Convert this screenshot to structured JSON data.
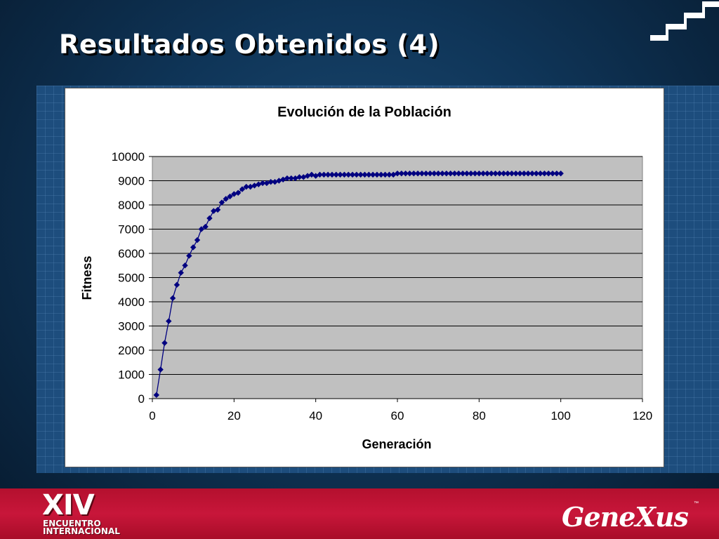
{
  "slide": {
    "title": "Resultados Obtenidos (4)",
    "colors": {
      "accent": "#c8163a",
      "background": "#0f3558"
    }
  },
  "footer": {
    "left_logo": {
      "big": "XIV",
      "line1": "ENCUENTRO",
      "line2": "INTERNACIONAL"
    },
    "right_logo": "GeneXus",
    "tm": "™"
  },
  "chart_data": {
    "type": "line",
    "title": "Evolución de la Población",
    "xlabel": "Generación",
    "ylabel": "Fitness",
    "xlim": [
      0,
      120
    ],
    "ylim": [
      0,
      10000
    ],
    "xticks": [
      0,
      20,
      40,
      60,
      80,
      100,
      120
    ],
    "yticks": [
      0,
      1000,
      2000,
      3000,
      4000,
      5000,
      6000,
      7000,
      8000,
      9000,
      10000
    ],
    "grid": true,
    "legend": "none",
    "marker": "diamond",
    "series_color": "#000080",
    "plot_background": "#c0c0c0",
    "series": [
      {
        "x": [
          1,
          2,
          3,
          4,
          5,
          6,
          7,
          8,
          9,
          10,
          11,
          12,
          13,
          14,
          15,
          16,
          17,
          18,
          19,
          20,
          21,
          22,
          23,
          24,
          25,
          26,
          27,
          28,
          29,
          30,
          31,
          32,
          33,
          34,
          35,
          36,
          37,
          38,
          39,
          40,
          41,
          42,
          43,
          44,
          45,
          46,
          47,
          48,
          49,
          50,
          51,
          52,
          53,
          54,
          55,
          56,
          57,
          58,
          59,
          60,
          61,
          62,
          63,
          64,
          65,
          66,
          67,
          68,
          69,
          70,
          71,
          72,
          73,
          74,
          75,
          76,
          77,
          78,
          79,
          80,
          81,
          82,
          83,
          84,
          85,
          86,
          87,
          88,
          89,
          90,
          91,
          92,
          93,
          94,
          95,
          96,
          97,
          98,
          99,
          100
        ],
        "y": [
          150,
          1200,
          2300,
          3200,
          4150,
          4700,
          5200,
          5500,
          5900,
          6250,
          6550,
          7000,
          7100,
          7450,
          7750,
          7800,
          8100,
          8250,
          8350,
          8450,
          8500,
          8650,
          8750,
          8750,
          8800,
          8850,
          8900,
          8900,
          8950,
          8950,
          9000,
          9050,
          9100,
          9100,
          9100,
          9150,
          9150,
          9200,
          9250,
          9200,
          9250,
          9250,
          9250,
          9250,
          9250,
          9250,
          9250,
          9250,
          9250,
          9250,
          9250,
          9250,
          9250,
          9250,
          9250,
          9250,
          9250,
          9250,
          9250,
          9300,
          9300,
          9300,
          9300,
          9300,
          9300,
          9300,
          9300,
          9300,
          9300,
          9300,
          9300,
          9300,
          9300,
          9300,
          9300,
          9300,
          9300,
          9300,
          9300,
          9300,
          9300,
          9300,
          9300,
          9300,
          9300,
          9300,
          9300,
          9300,
          9300,
          9300,
          9300,
          9300,
          9300,
          9300,
          9300,
          9300,
          9300,
          9300,
          9300,
          9300
        ]
      }
    ]
  }
}
